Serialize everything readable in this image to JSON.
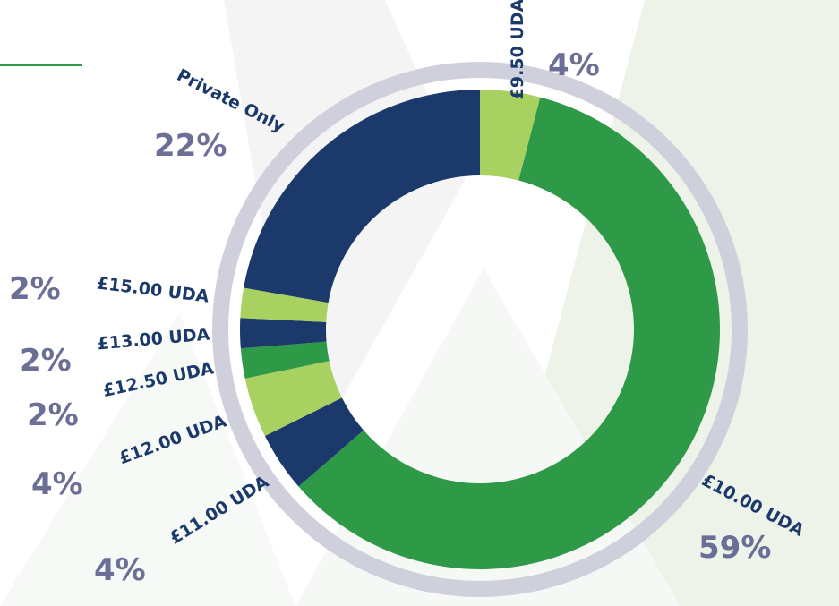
{
  "chart_data": {
    "type": "donut",
    "categories": [
      "£9.50 UDA",
      "£10.00 UDA",
      "£11.00 UDA",
      "£12.00 UDA",
      "£12.50 UDA",
      "£13.00 UDA",
      "£15.00 UDA",
      "Private Only"
    ],
    "values": [
      4,
      59,
      4,
      4,
      2,
      2,
      2,
      22
    ],
    "value_labels": [
      "4%",
      "59%",
      "4%",
      "4%",
      "2%",
      "2%",
      "2%",
      "22%"
    ],
    "colors": [
      "#a8d162",
      "#2e9a48",
      "#1b3a6b",
      "#a8d162",
      "#2e9a48",
      "#1b3a6b",
      "#a8d162",
      "#1b3a6b"
    ]
  }
}
